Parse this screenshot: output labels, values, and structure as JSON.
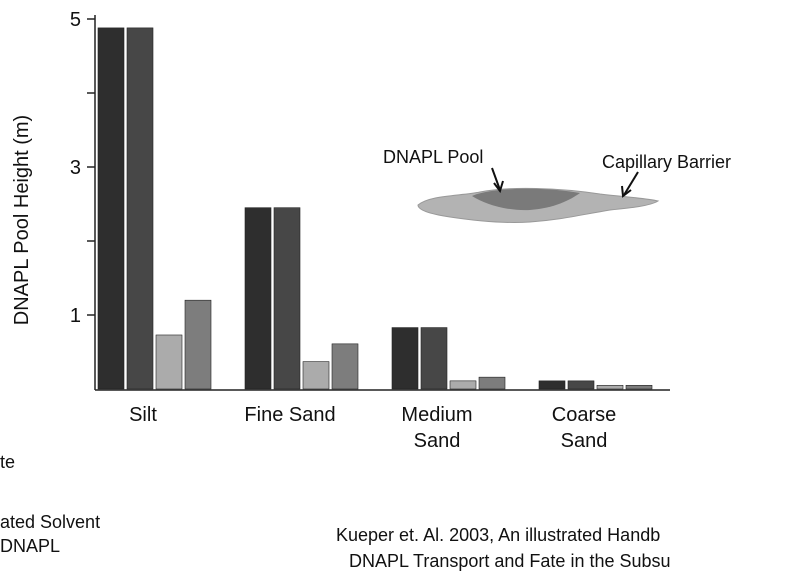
{
  "chart_data": {
    "type": "bar",
    "y_label": "DNAPL Pool Height (m)",
    "categories": [
      "Silt",
      "Fine Sand",
      "Medium\nSand",
      "Coarse\nSand"
    ],
    "series": [
      {
        "color": "#2e2e2e",
        "values": [
          4.88,
          2.45,
          0.83,
          0.11
        ]
      },
      {
        "color": "#474747",
        "values": [
          4.88,
          2.45,
          0.83,
          0.11
        ]
      },
      {
        "color": "#ababab",
        "values": [
          0.73,
          0.37,
          0.11,
          0.05
        ]
      },
      {
        "color": "#7d7d7d",
        "values": [
          1.2,
          0.61,
          0.16,
          0.05
        ]
      }
    ],
    "ylim": [
      0,
      5
    ],
    "yticks": [
      1,
      3,
      5
    ],
    "yminorticks": [
      2,
      4
    ],
    "annotations": [
      "DNAPL Pool",
      "Capillary Barrier"
    ],
    "legend_fragments": [
      "te",
      "ated Solvent",
      "DNAPL"
    ],
    "source": [
      "Kueper et. Al. 2003, An illustrated Handb",
      "DNAPL Transport and Fate in the Subsu"
    ]
  }
}
